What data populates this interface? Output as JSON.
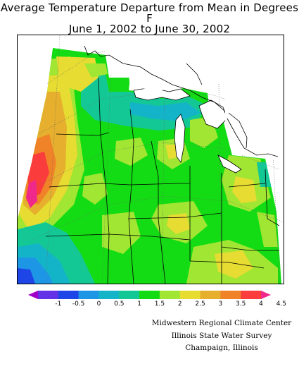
{
  "title": {
    "line1": "Average Temperature Departure from Mean in Degrees F",
    "line2": "June 1, 2002 to June 30, 2002"
  },
  "legend": {
    "ticks": [
      "-1",
      "-0.5",
      "0",
      "0.5",
      "1",
      "1.5",
      "2",
      "2.5",
      "3",
      "3.5",
      "4",
      "4.5"
    ],
    "colors": [
      "#a000c8",
      "#6432e6",
      "#1e46e6",
      "#1e96e6",
      "#14b4c8",
      "#14c896",
      "#14dc14",
      "#a0e632",
      "#e6dc32",
      "#e6af2d",
      "#f08228",
      "#fa3c3c",
      "#f0288c"
    ]
  },
  "credits": [
    "Midwestern Regional Climate Center",
    "Illinois State Water Survey",
    "Champaign, Illinois"
  ]
}
